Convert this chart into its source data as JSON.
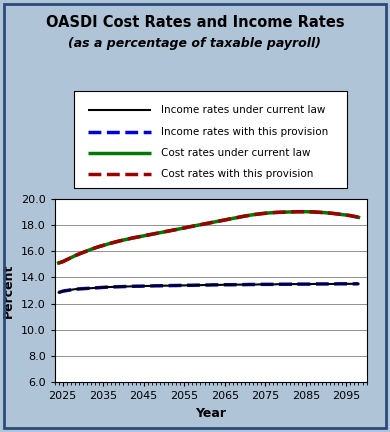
{
  "title": "OASDI Cost Rates and Income Rates",
  "subtitle": "(as a percentage of taxable payroll)",
  "xlabel": "Year",
  "ylabel": "Percent",
  "xlim": [
    2023,
    2100
  ],
  "ylim": [
    6.0,
    20.0
  ],
  "yticks": [
    6.0,
    8.0,
    10.0,
    12.0,
    14.0,
    16.0,
    18.0,
    20.0
  ],
  "xticks": [
    2025,
    2035,
    2045,
    2055,
    2065,
    2075,
    2085,
    2095
  ],
  "background_color": "#b0c4d8",
  "plot_bg_color": "#ffffff",
  "border_color": "#2a4a7a",
  "years": [
    2024,
    2025,
    2026,
    2027,
    2028,
    2029,
    2030,
    2031,
    2032,
    2033,
    2034,
    2035,
    2036,
    2037,
    2038,
    2039,
    2040,
    2041,
    2042,
    2043,
    2044,
    2045,
    2046,
    2047,
    2048,
    2049,
    2050,
    2051,
    2052,
    2053,
    2054,
    2055,
    2056,
    2057,
    2058,
    2059,
    2060,
    2061,
    2062,
    2063,
    2064,
    2065,
    2066,
    2067,
    2068,
    2069,
    2070,
    2071,
    2072,
    2073,
    2074,
    2075,
    2076,
    2077,
    2078,
    2079,
    2080,
    2081,
    2082,
    2083,
    2084,
    2085,
    2086,
    2087,
    2088,
    2089,
    2090,
    2091,
    2092,
    2093,
    2094,
    2095,
    2096,
    2097,
    2098
  ],
  "income_current_law": [
    12.85,
    12.95,
    13.0,
    13.05,
    13.1,
    13.12,
    13.14,
    13.16,
    13.18,
    13.2,
    13.22,
    13.24,
    13.26,
    13.27,
    13.28,
    13.29,
    13.3,
    13.31,
    13.32,
    13.33,
    13.33,
    13.34,
    13.35,
    13.35,
    13.36,
    13.36,
    13.37,
    13.37,
    13.38,
    13.38,
    13.39,
    13.39,
    13.4,
    13.4,
    13.41,
    13.41,
    13.42,
    13.42,
    13.43,
    13.43,
    13.43,
    13.44,
    13.44,
    13.44,
    13.45,
    13.45,
    13.45,
    13.46,
    13.46,
    13.46,
    13.47,
    13.47,
    13.47,
    13.47,
    13.48,
    13.48,
    13.48,
    13.48,
    13.49,
    13.49,
    13.49,
    13.49,
    13.49,
    13.5,
    13.5,
    13.5,
    13.5,
    13.5,
    13.5,
    13.51,
    13.51,
    13.51,
    13.51,
    13.51,
    13.51
  ],
  "income_provision": [
    12.85,
    12.95,
    13.0,
    13.05,
    13.1,
    13.12,
    13.14,
    13.16,
    13.18,
    13.2,
    13.22,
    13.24,
    13.26,
    13.27,
    13.28,
    13.29,
    13.3,
    13.31,
    13.32,
    13.33,
    13.33,
    13.34,
    13.35,
    13.35,
    13.36,
    13.36,
    13.37,
    13.37,
    13.38,
    13.38,
    13.39,
    13.39,
    13.4,
    13.4,
    13.41,
    13.41,
    13.42,
    13.42,
    13.43,
    13.43,
    13.43,
    13.44,
    13.44,
    13.44,
    13.45,
    13.45,
    13.45,
    13.46,
    13.46,
    13.46,
    13.47,
    13.47,
    13.47,
    13.47,
    13.48,
    13.48,
    13.48,
    13.48,
    13.49,
    13.49,
    13.49,
    13.49,
    13.49,
    13.5,
    13.5,
    13.5,
    13.5,
    13.5,
    13.5,
    13.51,
    13.51,
    13.51,
    13.51,
    13.51,
    13.51
  ],
  "cost_current_law": [
    15.1,
    15.2,
    15.35,
    15.5,
    15.65,
    15.78,
    15.9,
    16.02,
    16.14,
    16.25,
    16.35,
    16.44,
    16.53,
    16.62,
    16.7,
    16.78,
    16.85,
    16.92,
    16.99,
    17.05,
    17.11,
    17.17,
    17.23,
    17.29,
    17.35,
    17.41,
    17.47,
    17.53,
    17.59,
    17.65,
    17.71,
    17.77,
    17.84,
    17.9,
    17.96,
    18.02,
    18.08,
    18.14,
    18.2,
    18.26,
    18.32,
    18.38,
    18.44,
    18.5,
    18.56,
    18.62,
    18.68,
    18.73,
    18.78,
    18.82,
    18.86,
    18.89,
    18.92,
    18.94,
    18.96,
    18.97,
    18.98,
    18.99,
    19.0,
    19.01,
    19.01,
    19.01,
    19.0,
    18.99,
    18.97,
    18.95,
    18.93,
    18.9,
    18.87,
    18.83,
    18.79,
    18.75,
    18.71,
    18.65,
    18.58
  ],
  "cost_provision": [
    15.1,
    15.2,
    15.35,
    15.5,
    15.65,
    15.78,
    15.9,
    16.02,
    16.14,
    16.25,
    16.35,
    16.44,
    16.53,
    16.62,
    16.7,
    16.78,
    16.85,
    16.92,
    16.99,
    17.05,
    17.11,
    17.17,
    17.23,
    17.29,
    17.35,
    17.41,
    17.47,
    17.53,
    17.59,
    17.65,
    17.71,
    17.77,
    17.84,
    17.9,
    17.96,
    18.02,
    18.08,
    18.14,
    18.2,
    18.26,
    18.32,
    18.38,
    18.44,
    18.5,
    18.56,
    18.62,
    18.68,
    18.73,
    18.78,
    18.82,
    18.86,
    18.89,
    18.92,
    18.94,
    18.96,
    18.97,
    18.98,
    18.99,
    19.0,
    19.01,
    19.01,
    19.01,
    19.0,
    18.99,
    18.97,
    18.95,
    18.93,
    18.9,
    18.87,
    18.83,
    18.79,
    18.75,
    18.71,
    18.65,
    18.58
  ],
  "legend_entries": [
    {
      "label": "Income rates under current law",
      "color": "#000000",
      "linestyle": "solid",
      "linewidth": 1.5
    },
    {
      "label": "Income rates with this provision",
      "color": "#0000dd",
      "linestyle": "dashed",
      "linewidth": 2.5
    },
    {
      "label": "Cost rates under current law",
      "color": "#007700",
      "linestyle": "solid",
      "linewidth": 2.5
    },
    {
      "label": "Cost rates with this provision",
      "color": "#990000",
      "linestyle": "dashed",
      "linewidth": 2.5
    }
  ]
}
